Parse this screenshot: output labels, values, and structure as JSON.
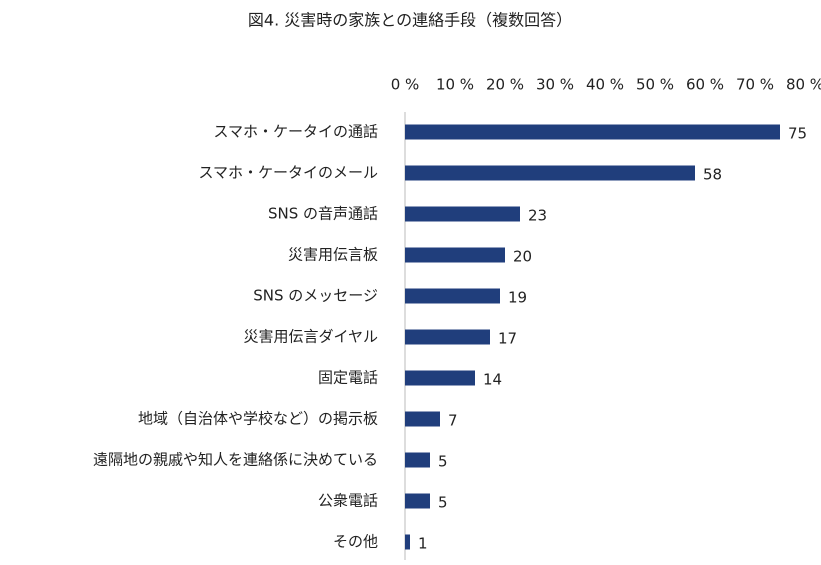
{
  "chart_data": {
    "type": "bar",
    "orientation": "horizontal",
    "title": "図4. 災害時の家族との連絡手段（複数回答）",
    "categories": [
      "スマホ・ケータイの通話",
      "スマホ・ケータイのメール",
      "SNS の音声通話",
      "災害用伝言板",
      "SNS のメッセージ",
      "災害用伝言ダイヤル",
      "固定電話",
      "地域（自治体や学校など）の掲示板",
      "遠隔地の親戚や知人を連絡係に決めている",
      "公衆電話",
      "その他"
    ],
    "values": [
      75,
      58,
      23,
      20,
      19,
      17,
      14,
      7,
      5,
      5,
      1
    ],
    "color": "#203e7c",
    "xlim": [
      0,
      80
    ],
    "xticks": [
      {
        "value": 0,
        "label": "0 %"
      },
      {
        "value": 10,
        "label": "10 %"
      },
      {
        "value": 20,
        "label": "20 %"
      },
      {
        "value": 30,
        "label": "30 %"
      },
      {
        "value": 40,
        "label": "40 %"
      },
      {
        "value": 50,
        "label": "50 %"
      },
      {
        "value": 60,
        "label": "60 %"
      },
      {
        "value": 70,
        "label": "70 %"
      },
      {
        "value": 80,
        "label": "80 %"
      }
    ],
    "grid": false
  }
}
